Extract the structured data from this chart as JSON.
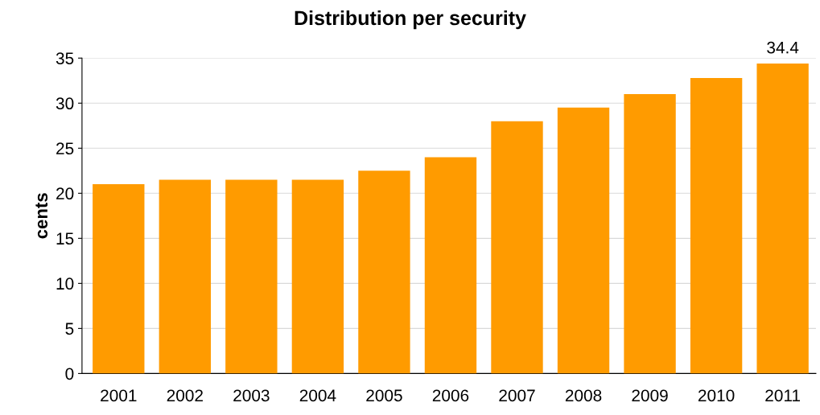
{
  "chart_data": {
    "type": "bar",
    "title": "Distribution per security",
    "ylabel": "cents",
    "categories": [
      "2001",
      "2002",
      "2003",
      "2004",
      "2005",
      "2006",
      "2007",
      "2008",
      "2009",
      "2010",
      "2011"
    ],
    "values": [
      21.0,
      21.5,
      21.5,
      21.5,
      22.5,
      24.0,
      28.0,
      29.5,
      31.0,
      32.8,
      34.4
    ],
    "value_labels": [
      null,
      null,
      null,
      null,
      null,
      null,
      null,
      null,
      null,
      null,
      "34.4"
    ],
    "color": "#ff9b00",
    "ylim": [
      0,
      35
    ],
    "yticks": [
      0,
      5,
      10,
      15,
      20,
      25,
      30,
      35
    ],
    "grid": "y",
    "legend": false
  }
}
